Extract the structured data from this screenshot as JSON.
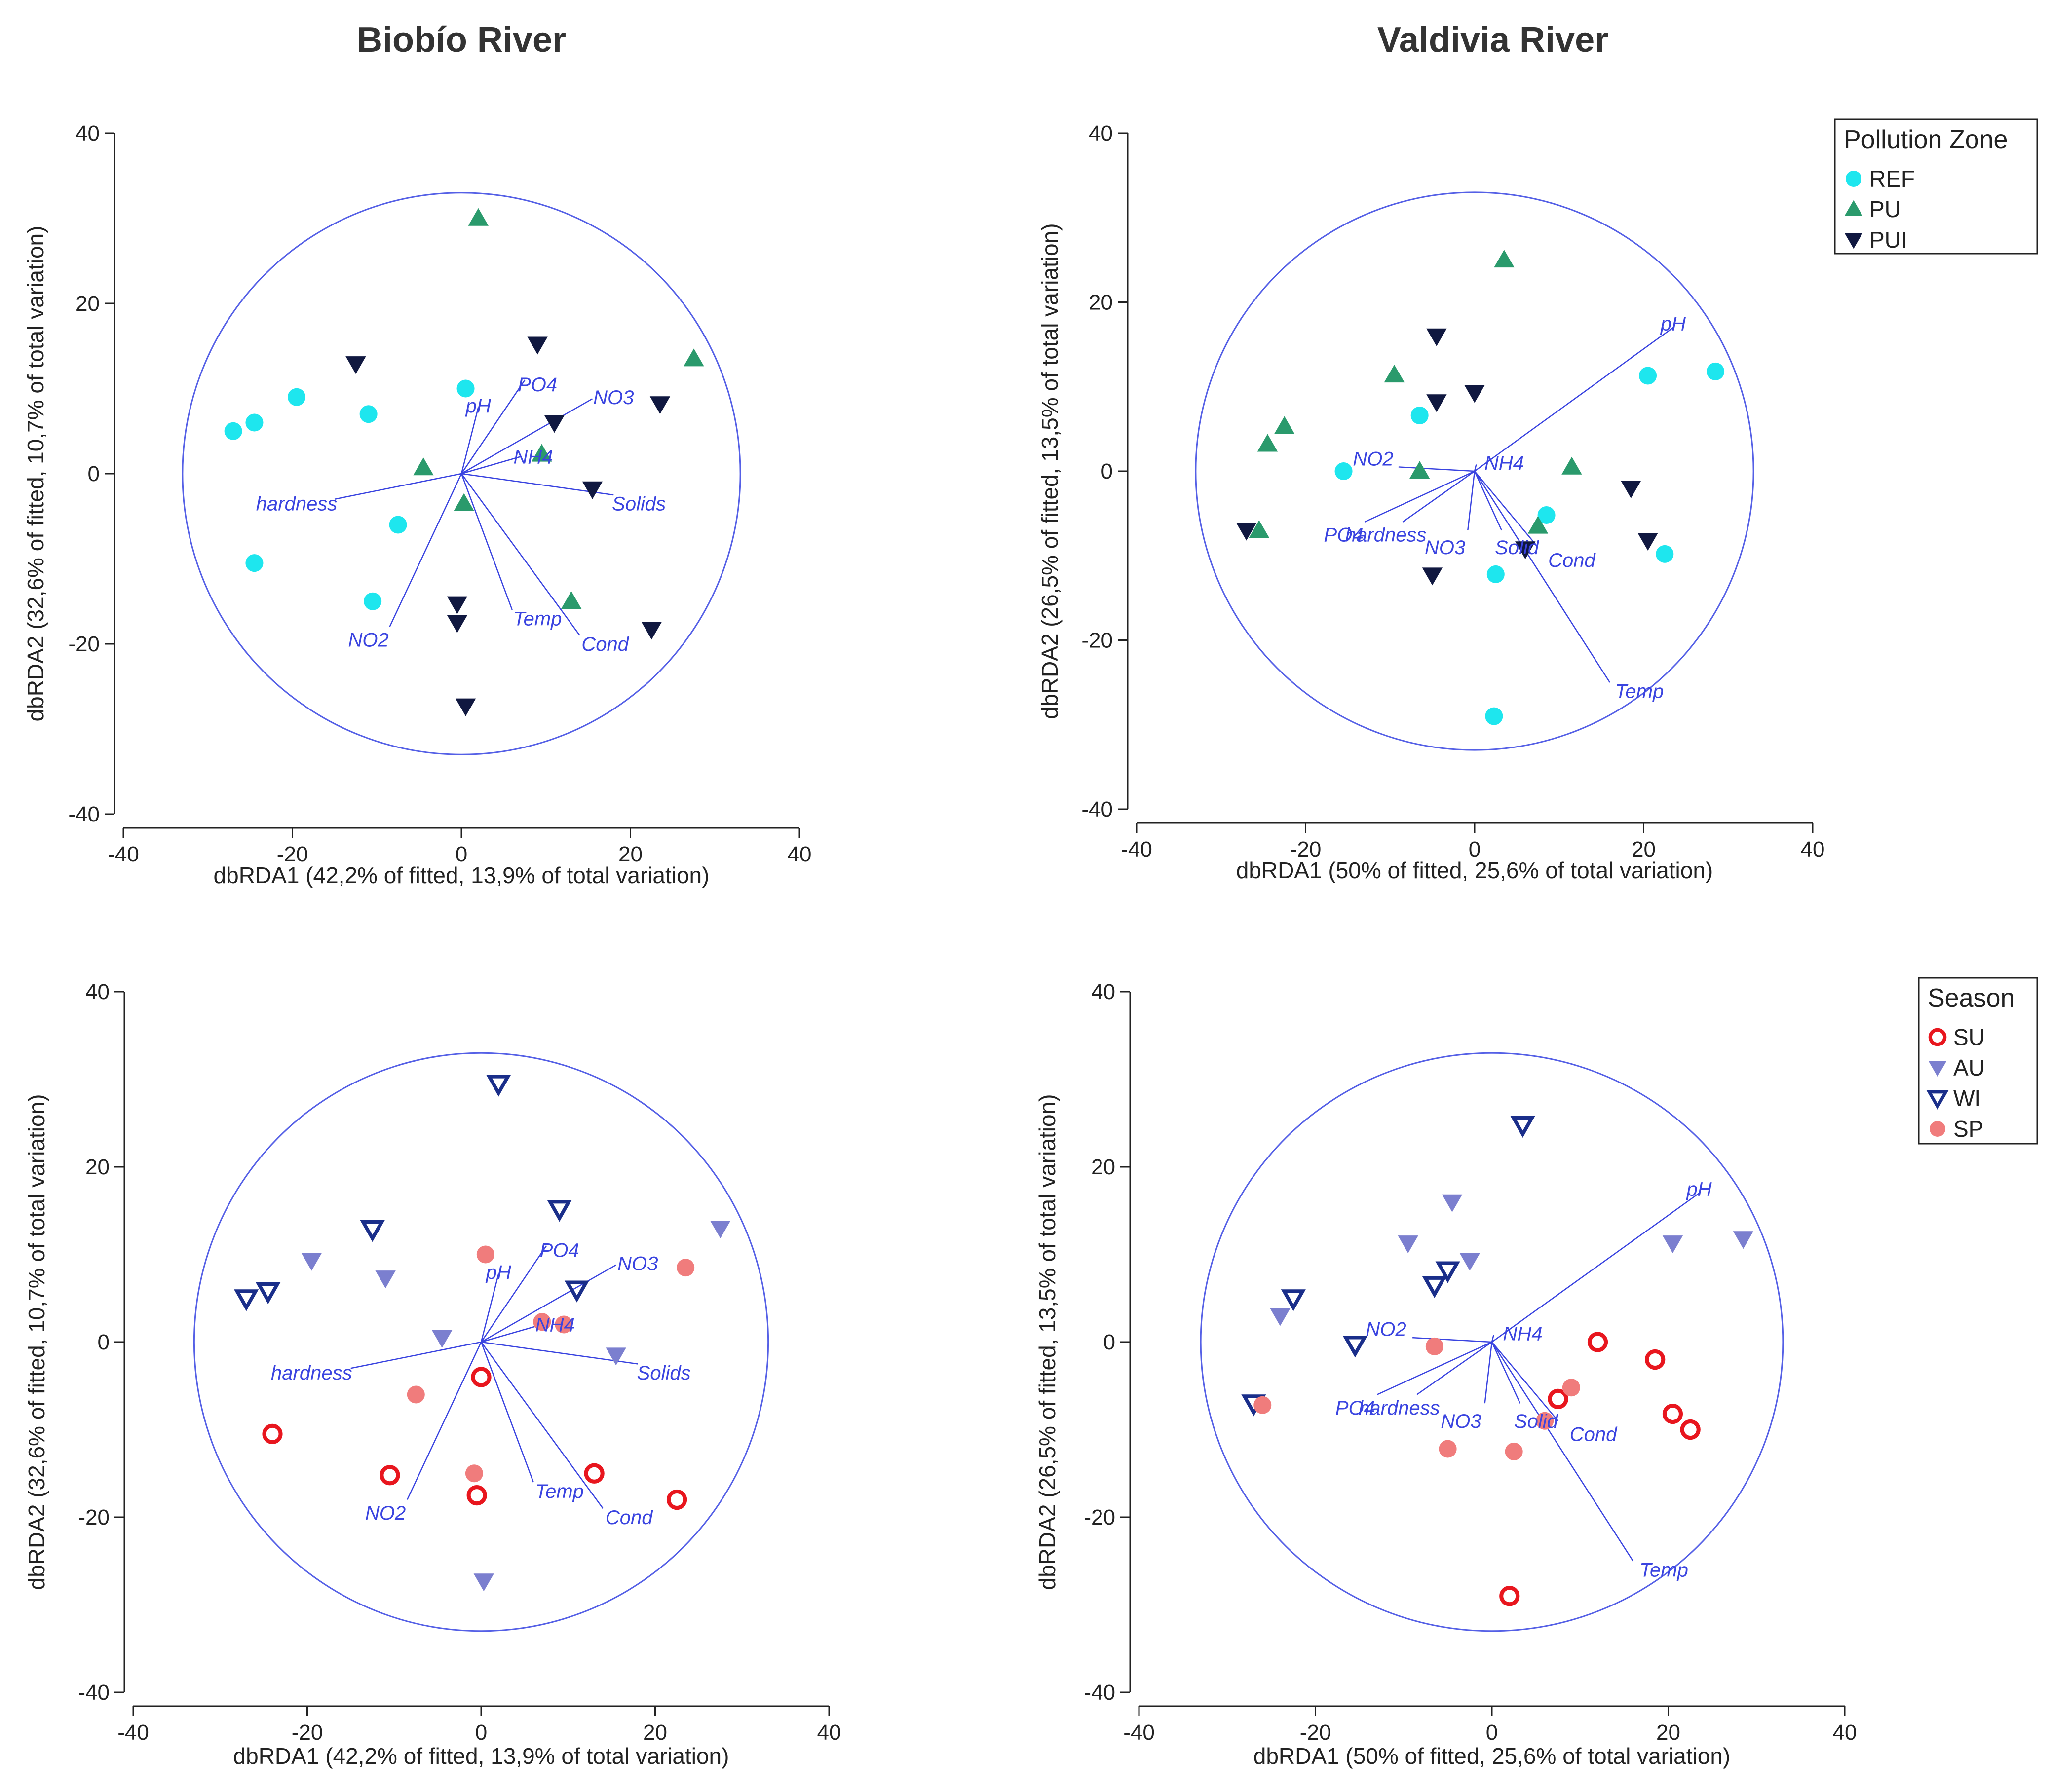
{
  "titles": {
    "left": "Biobío River",
    "right": "Valdivia River"
  },
  "colors": {
    "axis": "#222222",
    "circle": "#5560e6",
    "vector": "#3a44e0",
    "REF": "#1ee6ee",
    "PU": "#2a9a6c",
    "PUI": "#101840",
    "SU": "#e8161e",
    "AU": "#7b7fcf",
    "WI": "#1a2e8a",
    "SP": "#f07c7c"
  },
  "chart_data": [
    {
      "id": "biobio-zone",
      "type": "scatter",
      "title": "Biobío River",
      "xlabel": "dbRDA1 (42,2% of fitted, 13,9% of total variation)",
      "ylabel": "dbRDA2 (32,6% of fitted, 10,7% of total variation)",
      "xlim": [
        -40,
        40
      ],
      "ylim": [
        -40,
        40
      ],
      "xticks": [
        -40,
        -20,
        0,
        20,
        40
      ],
      "yticks": [
        -40,
        -20,
        0,
        20,
        40
      ],
      "circle_radius": 33,
      "vectors": [
        {
          "label": "pH",
          "x": 2.0,
          "y": 7.8,
          "lx": 2.0,
          "ly": 8.0
        },
        {
          "label": "PO4",
          "x": 7.5,
          "y": 11.0,
          "lx": 9.0,
          "ly": 10.5
        },
        {
          "label": "NO3",
          "x": 15.5,
          "y": 8.8,
          "lx": 18.0,
          "ly": 9.0
        },
        {
          "label": "NH4",
          "x": 7.0,
          "y": 2.0,
          "lx": 8.5,
          "ly": 2.0
        },
        {
          "label": "Solids",
          "x": 18.0,
          "y": -2.5,
          "lx": 21.0,
          "ly": -3.5
        },
        {
          "label": "hardness",
          "x": -15.0,
          "y": -3.0,
          "lx": -19.5,
          "ly": -3.5
        },
        {
          "label": "NO2",
          "x": -8.5,
          "y": -18.0,
          "lx": -11.0,
          "ly": -19.5
        },
        {
          "label": "Temp",
          "x": 6.0,
          "y": -16.0,
          "lx": 9.0,
          "ly": -17.0
        },
        {
          "label": "Cond",
          "x": 14.0,
          "y": -19.0,
          "lx": 17.0,
          "ly": -20.0
        }
      ],
      "series": [
        {
          "name": "REF",
          "marker": "circle",
          "points": [
            [
              -27,
              5
            ],
            [
              -24.5,
              6
            ],
            [
              -19.5,
              9
            ],
            [
              -11,
              7
            ],
            [
              0.5,
              10
            ],
            [
              -7.5,
              -6
            ],
            [
              -24.5,
              -10.5
            ],
            [
              -10.5,
              -15
            ]
          ]
        },
        {
          "name": "PU",
          "marker": "triangle",
          "points": [
            [
              2,
              30
            ],
            [
              27.5,
              13.5
            ],
            [
              -4.5,
              0.7
            ],
            [
              0.3,
              -3.5
            ],
            [
              9.5,
              2.3
            ],
            [
              13,
              -15
            ]
          ]
        },
        {
          "name": "PUI",
          "marker": "triangle-down",
          "points": [
            [
              -12.5,
              12.9
            ],
            [
              9,
              15.2
            ],
            [
              23.5,
              8.2
            ],
            [
              11,
              6
            ],
            [
              15.5,
              -1.8
            ],
            [
              -0.5,
              -15.3
            ],
            [
              -0.5,
              -17.5
            ],
            [
              22.5,
              -18.3
            ],
            [
              0.5,
              -27.3
            ]
          ]
        }
      ]
    },
    {
      "id": "valdivia-zone",
      "type": "scatter",
      "title": "Valdivia River",
      "xlabel": "dbRDA1 (50% of fitted, 25,6% of total variation)",
      "ylabel": "dbRDA2 (26,5% of fitted, 13,5% of total variation)",
      "xlim": [
        -40,
        40
      ],
      "ylim": [
        -40,
        40
      ],
      "xticks": [
        -40,
        -20,
        0,
        20,
        40
      ],
      "yticks": [
        -40,
        -20,
        0,
        20,
        40
      ],
      "circle_radius": 33,
      "vectors": [
        {
          "label": "pH",
          "x": 23.5,
          "y": 17.0,
          "lx": 23.5,
          "ly": 17.5
        },
        {
          "label": "NO2",
          "x": -9.0,
          "y": 0.5,
          "lx": -12.0,
          "ly": 1.5
        },
        {
          "label": "NH4",
          "x": 0.2,
          "y": 0.8,
          "lx": 3.5,
          "ly": 1.0
        },
        {
          "label": "PO4",
          "x": -13.0,
          "y": -6.0,
          "lx": -15.5,
          "ly": -7.5
        },
        {
          "label": "hardness",
          "x": -8.5,
          "y": -6.0,
          "lx": -10.5,
          "ly": -7.5
        },
        {
          "label": "NO3",
          "x": -0.8,
          "y": -7.0,
          "lx": -3.5,
          "ly": -9.0
        },
        {
          "label": "Solid",
          "x": 3.2,
          "y": -7.0,
          "lx": 5.0,
          "ly": -9.0
        },
        {
          "label": "Cond",
          "x": 7.5,
          "y": -9.0,
          "lx": 11.5,
          "ly": -10.5
        },
        {
          "label": "Temp",
          "x": 16.0,
          "y": -25.0,
          "lx": 19.5,
          "ly": -26.0
        }
      ],
      "series": [
        {
          "name": "REF",
          "marker": "circle",
          "points": [
            [
              20.5,
              11.3
            ],
            [
              28.5,
              11.8
            ],
            [
              -6.5,
              6.6
            ],
            [
              -15.5,
              0
            ],
            [
              8.5,
              -5.2
            ],
            [
              2.5,
              -12.2
            ],
            [
              22.5,
              -9.8
            ],
            [
              2.3,
              -29
            ]
          ]
        },
        {
          "name": "PU",
          "marker": "triangle",
          "points": [
            [
              3.5,
              25
            ],
            [
              -9.5,
              11.4
            ],
            [
              -22.5,
              5.3
            ],
            [
              -24.5,
              3.2
            ],
            [
              -6.5,
              0
            ],
            [
              11.5,
              0.5
            ],
            [
              -25.5,
              -7
            ],
            [
              7.5,
              -6.5
            ]
          ]
        },
        {
          "name": "PUI",
          "marker": "triangle-down",
          "points": [
            [
              -4.5,
              16
            ],
            [
              -4.5,
              8.2
            ],
            [
              0,
              9.3
            ],
            [
              -27,
              -7
            ],
            [
              -5,
              -12.3
            ],
            [
              6,
              -9.2
            ],
            [
              18.5,
              -2
            ],
            [
              20.5,
              -8.2
            ]
          ]
        }
      ],
      "legend": {
        "title": "Pollution Zone",
        "items": [
          {
            "name": "REF",
            "marker": "circle"
          },
          {
            "name": "PU",
            "marker": "triangle"
          },
          {
            "name": "PUI",
            "marker": "triangle-down"
          }
        ]
      }
    },
    {
      "id": "biobio-season",
      "type": "scatter",
      "title": "",
      "xlabel": "dbRDA1 (42,2% of fitted, 13,9% of total variation)",
      "ylabel": "dbRDA2 (32,6% of fitted, 10,7% of total variation)",
      "xlim": [
        -40,
        40
      ],
      "ylim": [
        -40,
        40
      ],
      "xticks": [
        -40,
        -20,
        0,
        20,
        40
      ],
      "yticks": [
        -40,
        -20,
        0,
        20,
        40
      ],
      "circle_radius": 33,
      "vectors": [
        {
          "label": "pH",
          "x": 2.0,
          "y": 7.8,
          "lx": 2.0,
          "ly": 8.0
        },
        {
          "label": "PO4",
          "x": 7.5,
          "y": 11.0,
          "lx": 9.0,
          "ly": 10.5
        },
        {
          "label": "NO3",
          "x": 15.5,
          "y": 8.8,
          "lx": 18.0,
          "ly": 9.0
        },
        {
          "label": "NH4",
          "x": 7.0,
          "y": 2.0,
          "lx": 8.5,
          "ly": 2.0
        },
        {
          "label": "Solids",
          "x": 18.0,
          "y": -2.5,
          "lx": 21.0,
          "ly": -3.5
        },
        {
          "label": "hardness",
          "x": -15.0,
          "y": -3.0,
          "lx": -19.5,
          "ly": -3.5
        },
        {
          "label": "NO2",
          "x": -8.5,
          "y": -18.0,
          "lx": -11.0,
          "ly": -19.5
        },
        {
          "label": "Temp",
          "x": 6.0,
          "y": -16.0,
          "lx": 9.0,
          "ly": -17.0
        },
        {
          "label": "Cond",
          "x": 14.0,
          "y": -19.0,
          "lx": 17.0,
          "ly": -20.0
        }
      ],
      "series": [
        {
          "name": "SU",
          "marker": "circle-open",
          "points": [
            [
              0,
              -4
            ],
            [
              -24,
              -10.5
            ],
            [
              -10.5,
              -15.2
            ],
            [
              -0.5,
              -17.5
            ],
            [
              13,
              -15
            ],
            [
              22.5,
              -18
            ]
          ]
        },
        {
          "name": "AU",
          "marker": "triangle-down",
          "points": [
            [
              -19.5,
              9.3
            ],
            [
              -11,
              7.3
            ],
            [
              -4.5,
              0.5
            ],
            [
              15.5,
              -1.5
            ],
            [
              27.5,
              13
            ],
            [
              0.3,
              -27.3
            ]
          ]
        },
        {
          "name": "WI",
          "marker": "triangle-down-open",
          "points": [
            [
              2,
              29.5
            ],
            [
              9,
              15.2
            ],
            [
              -12.5,
              12.9
            ],
            [
              11,
              6
            ],
            [
              -24.5,
              5.8
            ],
            [
              -27,
              5
            ]
          ]
        },
        {
          "name": "SP",
          "marker": "circle",
          "points": [
            [
              0.5,
              10
            ],
            [
              23.5,
              8.5
            ],
            [
              7,
              2.3
            ],
            [
              9.5,
              2
            ],
            [
              -7.5,
              -6
            ],
            [
              -0.8,
              -15
            ]
          ]
        }
      ]
    },
    {
      "id": "valdivia-season",
      "type": "scatter",
      "title": "",
      "xlabel": "dbRDA1 (50% of fitted, 25,6% of total variation)",
      "ylabel": "dbRDA2 (26,5% of fitted, 13,5% of total variation)",
      "xlim": [
        -40,
        40
      ],
      "ylim": [
        -40,
        40
      ],
      "xticks": [
        -40,
        -20,
        0,
        20,
        40
      ],
      "yticks": [
        -40,
        -20,
        0,
        20,
        40
      ],
      "circle_radius": 33,
      "vectors": [
        {
          "label": "pH",
          "x": 23.5,
          "y": 17.0,
          "lx": 23.5,
          "ly": 17.5
        },
        {
          "label": "NO2",
          "x": -9.0,
          "y": 0.5,
          "lx": -12.0,
          "ly": 1.5
        },
        {
          "label": "NH4",
          "x": 0.2,
          "y": 0.8,
          "lx": 3.5,
          "ly": 1.0
        },
        {
          "label": "PO4",
          "x": -13.0,
          "y": -6.0,
          "lx": -15.5,
          "ly": -7.5
        },
        {
          "label": "hardness",
          "x": -8.5,
          "y": -6.0,
          "lx": -10.5,
          "ly": -7.5
        },
        {
          "label": "NO3",
          "x": -0.8,
          "y": -7.0,
          "lx": -3.5,
          "ly": -9.0
        },
        {
          "label": "Solid",
          "x": 3.2,
          "y": -7.0,
          "lx": 5.0,
          "ly": -9.0
        },
        {
          "label": "Cond",
          "x": 7.5,
          "y": -9.0,
          "lx": 11.5,
          "ly": -10.5
        },
        {
          "label": "Temp",
          "x": 16.0,
          "y": -25.0,
          "lx": 19.5,
          "ly": -26.0
        }
      ],
      "series": [
        {
          "name": "SU",
          "marker": "circle-open",
          "points": [
            [
              12,
              0
            ],
            [
              18.5,
              -2
            ],
            [
              7.5,
              -6.5
            ],
            [
              20.5,
              -8.2
            ],
            [
              22.5,
              -10
            ],
            [
              2,
              -29
            ]
          ]
        },
        {
          "name": "AU",
          "marker": "triangle-down",
          "points": [
            [
              -4.5,
              16
            ],
            [
              -9.5,
              11.3
            ],
            [
              -2.5,
              9.3
            ],
            [
              -24,
              3
            ],
            [
              20.5,
              11.3
            ],
            [
              28.5,
              11.8
            ]
          ]
        },
        {
          "name": "WI",
          "marker": "triangle-down-open",
          "points": [
            [
              3.5,
              24.8
            ],
            [
              -5,
              8.2
            ],
            [
              -6.5,
              6.5
            ],
            [
              -22.5,
              5
            ],
            [
              -15.5,
              -0.3
            ],
            [
              -27,
              -7
            ]
          ]
        },
        {
          "name": "SP",
          "marker": "circle",
          "points": [
            [
              -6.5,
              -0.5
            ],
            [
              9,
              -5.2
            ],
            [
              -26,
              -7.2
            ],
            [
              -5,
              -12.2
            ],
            [
              2.5,
              -12.5
            ],
            [
              6,
              -9
            ]
          ]
        }
      ],
      "legend": {
        "title": "Season",
        "items": [
          {
            "name": "SU",
            "marker": "circle-open"
          },
          {
            "name": "AU",
            "marker": "triangle-down"
          },
          {
            "name": "WI",
            "marker": "triangle-down-open"
          },
          {
            "name": "SP",
            "marker": "circle"
          }
        ]
      }
    }
  ]
}
